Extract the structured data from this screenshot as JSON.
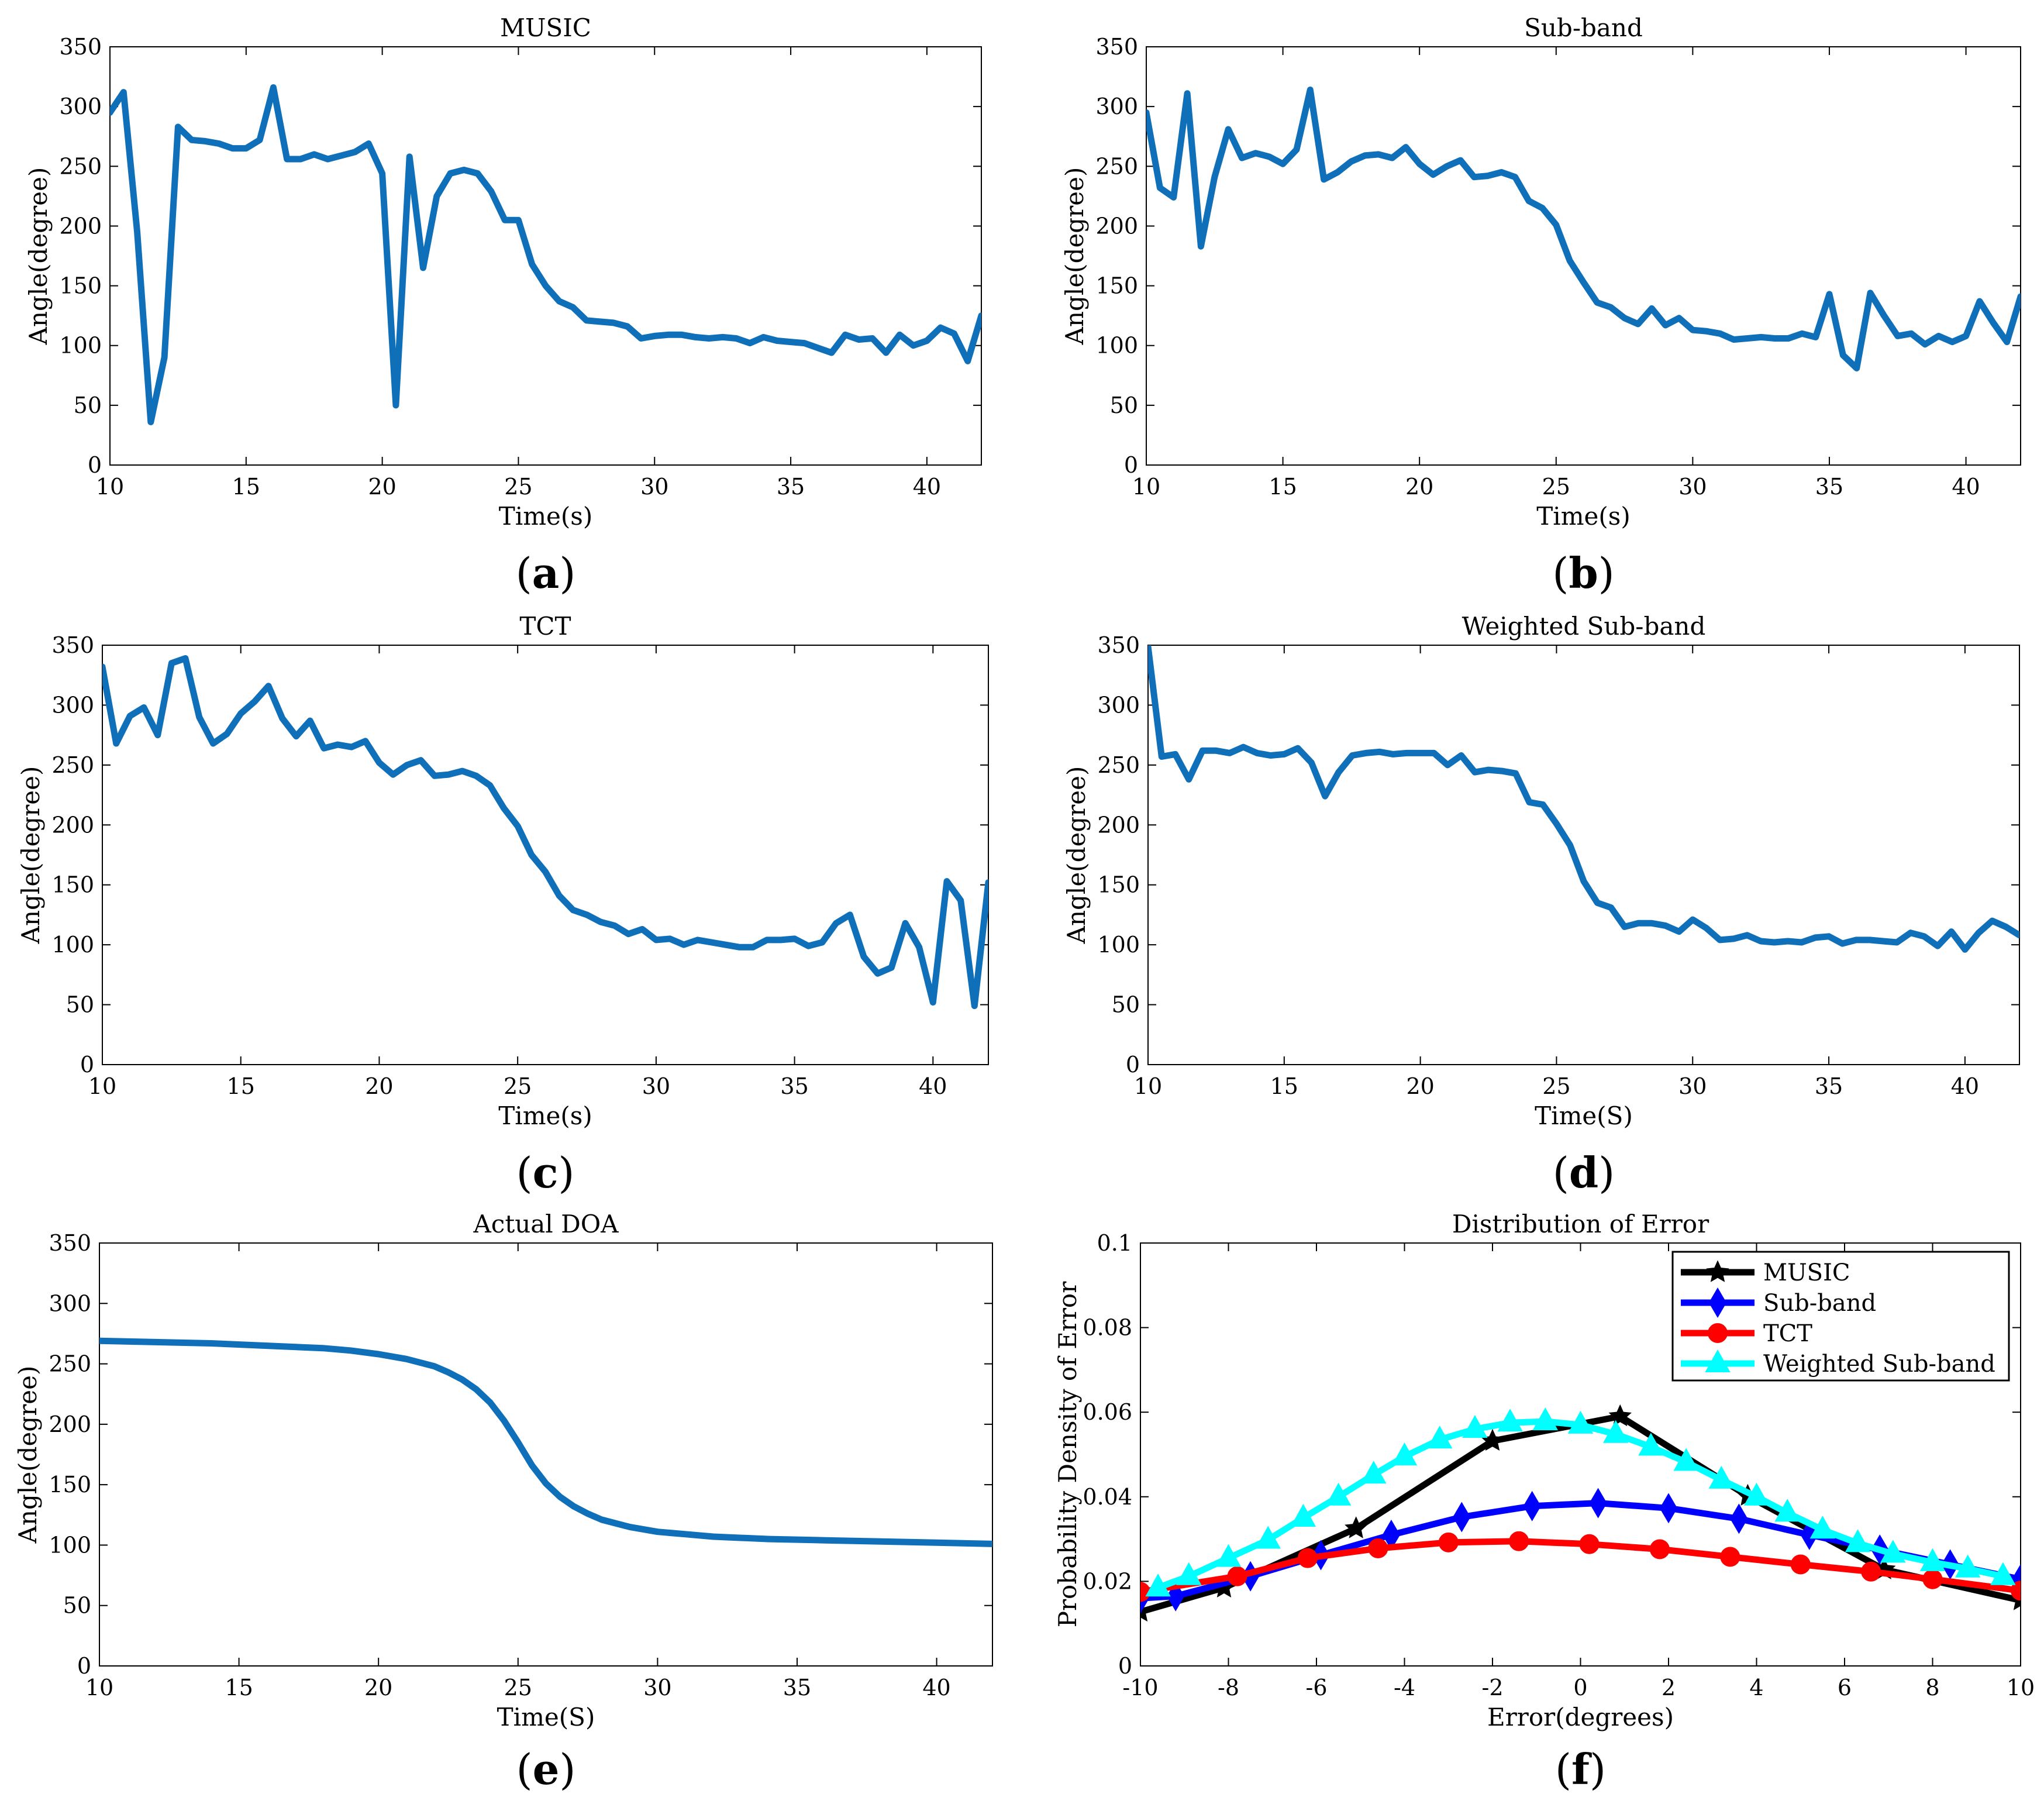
{
  "figure": {
    "captions": [
      "a",
      "b",
      "c",
      "d",
      "e",
      "f"
    ]
  },
  "chart_data": [
    {
      "type": "line",
      "title": "MUSIC",
      "xlabel": "Time(s)",
      "ylabel": "Angle(degree)",
      "xlim": [
        10,
        42
      ],
      "ylim": [
        0,
        350
      ],
      "xticks": [
        10,
        15,
        20,
        25,
        30,
        35,
        40
      ],
      "yticks": [
        0,
        50,
        100,
        150,
        200,
        250,
        300,
        350
      ],
      "color": "#0F6FB9",
      "series": [
        {
          "name": "MUSIC",
          "x": [
            10,
            10.5,
            11,
            11.5,
            12,
            12.5,
            13,
            13.5,
            14,
            14.5,
            15,
            15.5,
            16,
            16.5,
            17,
            17.5,
            18,
            18.5,
            19,
            19.5,
            20,
            20.5,
            21,
            21.5,
            22,
            22.5,
            23,
            23.5,
            24,
            24.5,
            25,
            25.5,
            26,
            26.5,
            27,
            27.5,
            28,
            28.5,
            29,
            29.5,
            30,
            30.5,
            31,
            31.5,
            32,
            32.5,
            33,
            33.5,
            34,
            34.5,
            35,
            35.5,
            36,
            36.5,
            37,
            37.5,
            38,
            38.5,
            39,
            39.5,
            40,
            40.5,
            41,
            41.5,
            42
          ],
          "y": [
            295,
            312,
            195,
            36,
            90,
            283,
            272,
            271,
            269,
            265,
            265,
            272,
            316,
            256,
            256,
            260,
            256,
            259,
            262,
            269,
            244,
            50,
            258,
            165,
            225,
            244,
            247,
            244,
            229,
            205,
            205,
            168,
            150,
            137,
            132,
            121,
            120,
            119,
            116,
            106,
            108,
            109,
            109,
            107,
            106,
            107,
            106,
            102,
            107,
            104,
            103,
            102,
            98,
            94,
            109,
            105,
            106,
            94,
            109,
            100,
            104,
            115,
            110,
            87,
            125
          ]
        }
      ]
    },
    {
      "type": "line",
      "title": "Sub-band",
      "xlabel": "Time(s)",
      "ylabel": "Angle(degree)",
      "xlim": [
        10,
        42
      ],
      "ylim": [
        0,
        350
      ],
      "xticks": [
        10,
        15,
        20,
        25,
        30,
        35,
        40
      ],
      "yticks": [
        0,
        50,
        100,
        150,
        200,
        250,
        300,
        350
      ],
      "color": "#0F6FB9",
      "series": [
        {
          "name": "Sub-band",
          "x": [
            10,
            10.5,
            11,
            11.5,
            12,
            12.5,
            13,
            13.5,
            14,
            14.5,
            15,
            15.5,
            16,
            16.5,
            17,
            17.5,
            18,
            18.5,
            19,
            19.5,
            20,
            20.5,
            21,
            21.5,
            22,
            22.5,
            23,
            23.5,
            24,
            24.5,
            25,
            25.5,
            26,
            26.5,
            27,
            27.5,
            28,
            28.5,
            29,
            29.5,
            30,
            30.5,
            31,
            31.5,
            32,
            32.5,
            33,
            33.5,
            34,
            34.5,
            35,
            35.5,
            36,
            36.5,
            37,
            37.5,
            38,
            38.5,
            39,
            39.5,
            40,
            40.5,
            41,
            41.5,
            42
          ],
          "y": [
            295,
            232,
            224,
            311,
            183,
            241,
            281,
            257,
            261,
            258,
            252,
            264,
            314,
            239,
            245,
            254,
            259,
            260,
            257,
            266,
            252,
            243,
            250,
            255,
            241,
            242,
            245,
            241,
            221,
            215,
            201,
            171,
            153,
            136,
            132,
            123,
            118,
            131,
            117,
            123,
            113,
            112,
            110,
            105,
            106,
            107,
            106,
            106,
            110,
            107,
            143,
            92,
            81,
            144,
            125,
            108,
            110,
            101,
            108,
            103,
            108,
            137,
            119,
            103,
            141
          ]
        }
      ]
    },
    {
      "type": "line",
      "title": "TCT",
      "xlabel": "Time(s)",
      "ylabel": "Angle(degree)",
      "xlim": [
        10,
        42
      ],
      "ylim": [
        0,
        350
      ],
      "xticks": [
        10,
        15,
        20,
        25,
        30,
        35,
        40
      ],
      "yticks": [
        0,
        50,
        100,
        150,
        200,
        250,
        300,
        350
      ],
      "color": "#0F6FB9",
      "series": [
        {
          "name": "TCT",
          "x": [
            10,
            10.5,
            11,
            11.5,
            12,
            12.5,
            13,
            13.5,
            14,
            14.5,
            15,
            15.5,
            16,
            16.5,
            17,
            17.5,
            18,
            18.5,
            19,
            19.5,
            20,
            20.5,
            21,
            21.5,
            22,
            22.5,
            23,
            23.5,
            24,
            24.5,
            25,
            25.5,
            26,
            26.5,
            27,
            27.5,
            28,
            28.5,
            29,
            29.5,
            30,
            30.5,
            31,
            31.5,
            32,
            32.5,
            33,
            33.5,
            34,
            34.5,
            35,
            35.5,
            36,
            36.5,
            37,
            37.5,
            38,
            38.5,
            39,
            39.5,
            40,
            40.5,
            41,
            41.5,
            42
          ],
          "y": [
            332,
            268,
            291,
            298,
            275,
            335,
            339,
            290,
            268,
            276,
            293,
            303,
            316,
            289,
            274,
            287,
            264,
            267,
            265,
            270,
            252,
            242,
            250,
            254,
            241,
            242,
            245,
            241,
            233,
            214,
            199,
            175,
            161,
            141,
            129,
            125,
            119,
            116,
            109,
            113,
            104,
            105,
            100,
            104,
            102,
            100,
            98,
            98,
            104,
            104,
            105,
            99,
            102,
            118,
            125,
            90,
            76,
            81,
            118,
            98,
            52,
            153,
            137,
            49,
            152
          ]
        }
      ]
    },
    {
      "type": "line",
      "title": "Weighted Sub-band",
      "xlabel": "Time(S)",
      "ylabel": "Angle(degree)",
      "xlim": [
        10,
        42
      ],
      "ylim": [
        0,
        350
      ],
      "xticks": [
        10,
        15,
        20,
        25,
        30,
        35,
        40
      ],
      "yticks": [
        0,
        50,
        100,
        150,
        200,
        250,
        300,
        350
      ],
      "color": "#0F6FB9",
      "series": [
        {
          "name": "Weighted Sub-band",
          "x": [
            10,
            10.5,
            11,
            11.5,
            12,
            12.5,
            13,
            13.5,
            14,
            14.5,
            15,
            15.5,
            16,
            16.5,
            17,
            17.5,
            18,
            18.5,
            19,
            19.5,
            20,
            20.5,
            21,
            21.5,
            22,
            22.5,
            23,
            23.5,
            24,
            24.5,
            25,
            25.5,
            26,
            26.5,
            27,
            27.5,
            28,
            28.5,
            29,
            29.5,
            30,
            30.5,
            31,
            31.5,
            32,
            32.5,
            33,
            33.5,
            34,
            34.5,
            35,
            35.5,
            36,
            36.5,
            37,
            37.5,
            38,
            38.5,
            39,
            39.5,
            40,
            40.5,
            41,
            41.5,
            42
          ],
          "y": [
            349,
            257,
            259,
            238,
            262,
            262,
            260,
            265,
            260,
            258,
            259,
            264,
            252,
            224,
            244,
            258,
            260,
            261,
            259,
            260,
            260,
            260,
            250,
            258,
            244,
            246,
            245,
            243,
            219,
            217,
            201,
            183,
            153,
            135,
            131,
            115,
            118,
            118,
            116,
            111,
            121,
            114,
            104,
            105,
            108,
            103,
            102,
            103,
            102,
            106,
            107,
            101,
            104,
            104,
            103,
            102,
            110,
            107,
            99,
            111,
            96,
            110,
            120,
            115,
            108
          ]
        }
      ]
    },
    {
      "type": "line",
      "title": "Actual DOA",
      "xlabel": "Time(S)",
      "ylabel": "Angle(degree)",
      "xlim": [
        10,
        42
      ],
      "ylim": [
        0,
        350
      ],
      "xticks": [
        10,
        15,
        20,
        25,
        30,
        35,
        40
      ],
      "yticks": [
        0,
        50,
        100,
        150,
        200,
        250,
        300,
        350
      ],
      "color": "#0F6FB9",
      "series": [
        {
          "name": "Actual DOA",
          "x": [
            10,
            12,
            14,
            16,
            18,
            19,
            20,
            21,
            22,
            22.5,
            23,
            23.5,
            24,
            24.5,
            25,
            25.5,
            26,
            26.5,
            27,
            27.5,
            28,
            29,
            30,
            31,
            32,
            34,
            36,
            38,
            40,
            42
          ],
          "y": [
            269,
            268,
            267,
            265,
            263,
            261,
            258,
            254,
            248,
            243,
            237,
            229,
            218,
            203,
            185,
            166,
            151,
            140,
            132,
            126,
            121,
            115,
            111,
            109,
            107,
            105,
            104,
            103,
            102,
            101
          ]
        }
      ]
    },
    {
      "type": "line",
      "title": "Distribution of Error",
      "xlabel": "Error(degrees)",
      "ylabel": "Probability Density of Error",
      "xlim": [
        -10,
        10
      ],
      "ylim": [
        0,
        0.1
      ],
      "xticks": [
        -10,
        -8,
        -6,
        -4,
        -2,
        0,
        2,
        4,
        6,
        8,
        10
      ],
      "yticks": [
        0,
        0.02,
        0.04,
        0.06,
        0.08,
        0.1
      ],
      "ytick_labels": [
        "0",
        "0.02",
        "0.04",
        "0.06",
        "0.08",
        "0.1"
      ],
      "legend_position": "top-right",
      "series": [
        {
          "name": "MUSIC",
          "color": "#000000",
          "marker": "star",
          "x": [
            -10,
            -8.1,
            -5.1,
            -2,
            0.9,
            3.8,
            6.9,
            10
          ],
          "y": [
            0.0128,
            0.0185,
            0.0325,
            0.0532,
            0.059,
            0.0402,
            0.0228,
            0.0155
          ]
        },
        {
          "name": "Sub-band",
          "color": "#0000FF",
          "marker": "diamond",
          "x": [
            -10,
            -9.2,
            -7.5,
            -5.9,
            -4.3,
            -2.7,
            -1.1,
            0.4,
            2.0,
            3.6,
            5.2,
            6.8,
            8.4,
            10
          ],
          "y": [
            0.016,
            0.0165,
            0.0212,
            0.0262,
            0.031,
            0.0352,
            0.0378,
            0.0385,
            0.0373,
            0.0348,
            0.031,
            0.0275,
            0.024,
            0.0205
          ]
        },
        {
          "name": "TCT",
          "color": "#FF0000",
          "marker": "circle",
          "x": [
            -10,
            -7.8,
            -6.2,
            -4.6,
            -3.0,
            -1.4,
            0.2,
            1.8,
            3.4,
            5.0,
            6.6,
            8.0,
            10
          ],
          "y": [
            0.0175,
            0.0212,
            0.0255,
            0.0278,
            0.0292,
            0.0295,
            0.0288,
            0.0276,
            0.0258,
            0.024,
            0.0223,
            0.0205,
            0.0178
          ]
        },
        {
          "name": "Weighted Sub-band",
          "color": "#00FFFF",
          "marker": "triangle",
          "x": [
            -9.6,
            -8.9,
            -8.0,
            -7.1,
            -6.3,
            -5.5,
            -4.7,
            -4.0,
            -3.2,
            -2.4,
            -1.6,
            -0.8,
            0,
            0.8,
            1.6,
            2.4,
            3.2,
            4.0,
            4.7,
            5.5,
            6.3,
            7.1,
            8.0,
            8.8,
            9.6
          ],
          "y": [
            0.0185,
            0.0212,
            0.0255,
            0.0298,
            0.035,
            0.04,
            0.0452,
            0.0495,
            0.0535,
            0.056,
            0.0575,
            0.0578,
            0.057,
            0.0548,
            0.0518,
            0.0482,
            0.044,
            0.04,
            0.0362,
            0.0322,
            0.029,
            0.0265,
            0.0245,
            0.023,
            0.0212
          ]
        }
      ]
    }
  ]
}
